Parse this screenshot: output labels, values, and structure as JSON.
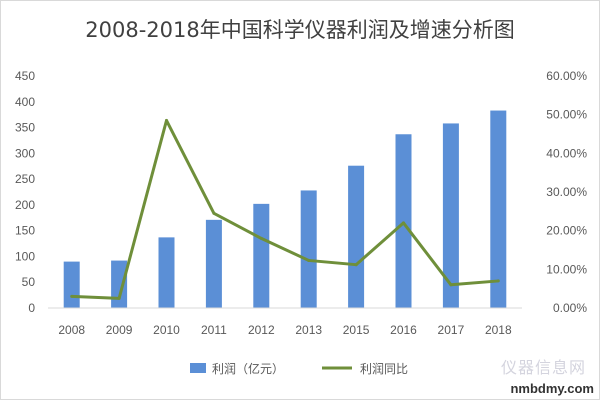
{
  "chart_data": {
    "type": "bar+line",
    "title": "2008-2018年中国科学仪器利润及增速分析图",
    "categories": [
      "2008",
      "2009",
      "2010",
      "2011",
      "2012",
      "2013",
      "2015",
      "2016",
      "2017",
      "2018"
    ],
    "series": [
      {
        "name": "利润（亿元）",
        "type": "bar",
        "axis": "left",
        "values": [
          90,
          92,
          137,
          171,
          202,
          228,
          276,
          337,
          358,
          383
        ],
        "color": "#5b8fd6"
      },
      {
        "name": "利润同比",
        "type": "line",
        "axis": "right",
        "values": [
          3.0,
          2.5,
          48.5,
          24.5,
          18.0,
          12.3,
          11.2,
          22.0,
          6.0,
          7.0
        ],
        "color": "#6f8f3a"
      }
    ],
    "y_left": {
      "min": 0,
      "max": 450,
      "ticks": [
        "0",
        "50",
        "100",
        "150",
        "200",
        "250",
        "300",
        "350",
        "400",
        "450"
      ]
    },
    "y_right": {
      "min": 0,
      "max": 60,
      "ticks": [
        "0.00%",
        "10.00%",
        "20.00%",
        "30.00%",
        "40.00%",
        "50.00%",
        "60.00%"
      ]
    },
    "xlabel": "",
    "ylabel": "",
    "grid": false,
    "legend": "bottom"
  },
  "watermark": {
    "logo": "仪器信息网",
    "text": "nmbdmy.com"
  }
}
